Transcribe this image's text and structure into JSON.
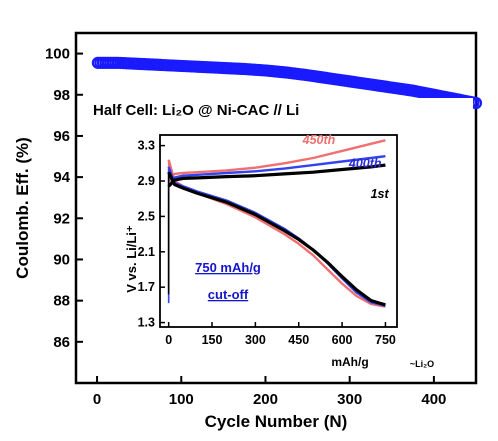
{
  "chart_data": [
    {
      "type": "scatter",
      "xlabel": "Cycle Number (N)",
      "ylabel": "Coulomb. Eff. (%)",
      "xlim": [
        -25,
        450
      ],
      "ylim": [
        84,
        101
      ],
      "x_ticks": [
        "0",
        "100",
        "200",
        "300",
        "400"
      ],
      "y_ticks": [
        "86",
        "88",
        "90",
        "92",
        "94",
        "96",
        "98",
        "100"
      ],
      "series": [
        {
          "color": "#1a1aff",
          "marker": "open-circle",
          "x": [
            1,
            25,
            50,
            75,
            100,
            125,
            150,
            175,
            200,
            225,
            250,
            275,
            300,
            325,
            350,
            375,
            400,
            425,
            450
          ],
          "y": [
            99.55,
            99.55,
            99.5,
            99.45,
            99.4,
            99.35,
            99.3,
            99.25,
            99.18,
            99.08,
            98.95,
            98.8,
            98.65,
            98.5,
            98.35,
            98.2,
            98.0,
            97.8,
            97.6
          ]
        }
      ]
    },
    {
      "type": "line",
      "title": "Half Cell: Li₂O @ Ni-CAC // Li",
      "xlabel": "mAh/g",
      "xlabel_sub": "~Li₂O",
      "ylabel": "V vs. Li/Li⁺",
      "xlim": [
        -30,
        790
      ],
      "ylim": [
        1.25,
        3.42
      ],
      "x_ticks": [
        "0",
        "150",
        "300",
        "450",
        "600",
        "750"
      ],
      "y_ticks": [
        "1.3",
        "1.7",
        "2.1",
        "2.5",
        "2.9",
        "3.3"
      ],
      "annotation": [
        "750 mAh/g",
        "cut-off"
      ],
      "series": [
        {
          "name": "1st",
          "color": "#000000",
          "charge": {
            "x": [
              0,
              20,
              50,
              100,
              200,
              300,
              400,
              500,
              600,
              700,
              750
            ],
            "y": [
              2.84,
              2.91,
              2.93,
              2.935,
              2.95,
              2.96,
              2.98,
              3.0,
              3.03,
              3.06,
              3.08
            ]
          },
          "discharge": {
            "x": [
              0,
              20,
              50,
              100,
              200,
              300,
              400,
              450,
              500,
              550,
              600,
              650,
              700,
              750
            ],
            "y": [
              3.0,
              2.86,
              2.82,
              2.76,
              2.66,
              2.52,
              2.34,
              2.24,
              2.12,
              1.98,
              1.82,
              1.67,
              1.55,
              1.5
            ]
          }
        },
        {
          "name": "400th",
          "color": "#3344ee",
          "charge": {
            "x": [
              0,
              20,
              50,
              100,
              200,
              300,
              400,
              500,
              600,
              700,
              750
            ],
            "y": [
              2.84,
              2.94,
              2.96,
              2.97,
              2.99,
              3.01,
              3.04,
              3.08,
              3.12,
              3.16,
              3.18
            ]
          },
          "discharge": {
            "x": [
              0,
              20,
              50,
              100,
              200,
              300,
              400,
              450,
              500,
              550,
              600,
              650,
              700,
              750
            ],
            "y": [
              3.06,
              2.88,
              2.84,
              2.78,
              2.68,
              2.54,
              2.36,
              2.25,
              2.12,
              1.97,
              1.8,
              1.64,
              1.53,
              1.49
            ]
          }
        },
        {
          "name": "450th",
          "color": "#f07070",
          "charge": {
            "x": [
              0,
              20,
              50,
              100,
              200,
              300,
              400,
              500,
              600,
              700,
              750
            ],
            "y": [
              2.9,
              2.98,
              2.99,
              3.0,
              3.02,
              3.05,
              3.1,
              3.16,
              3.24,
              3.32,
              3.36
            ]
          },
          "discharge": {
            "x": [
              0,
              20,
              50,
              100,
              200,
              300,
              400,
              450,
              500,
              550,
              600,
              650,
              700,
              750
            ],
            "y": [
              3.14,
              2.9,
              2.84,
              2.76,
              2.64,
              2.49,
              2.3,
              2.19,
              2.06,
              1.9,
              1.74,
              1.6,
              1.51,
              1.48
            ]
          }
        }
      ]
    }
  ]
}
